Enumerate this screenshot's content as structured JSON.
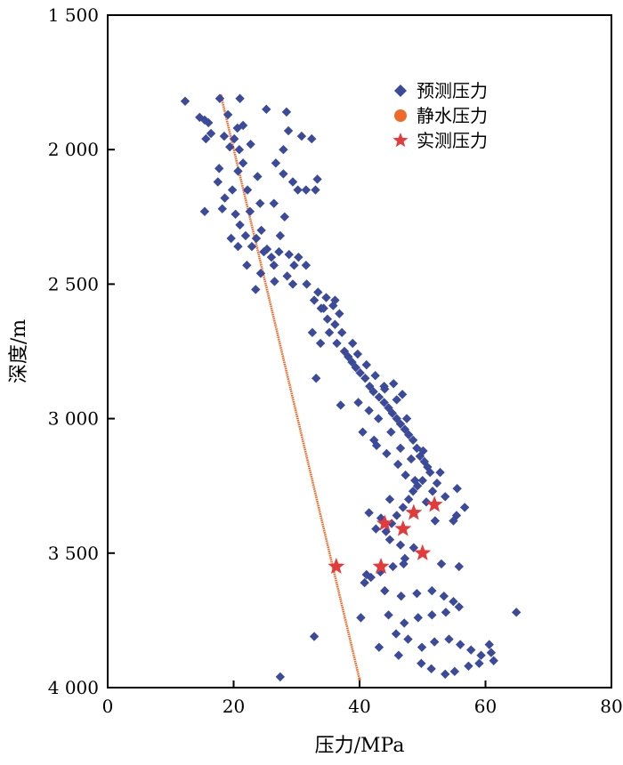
{
  "chart_data": {
    "type": "scatter",
    "title": "",
    "xlabel": "压力/MPa",
    "ylabel": "深度/m",
    "xlim": [
      0,
      80
    ],
    "ylim": [
      1500,
      4000
    ],
    "y_inverted": true,
    "x_ticks": [
      0,
      20,
      40,
      60,
      80
    ],
    "x_tick_labels": [
      "0",
      "20",
      "40",
      "60",
      "80"
    ],
    "y_ticks": [
      1500,
      2000,
      2500,
      3000,
      3500,
      4000
    ],
    "y_tick_labels": [
      "1 500",
      "2 000",
      "2 500",
      "3 000",
      "3 500",
      "4 000"
    ],
    "grid": false,
    "legend_position": "top-right",
    "colors": {
      "predicted": "#3b4a9a",
      "hydrostatic": "#ef6a2a",
      "measured": "#e53a3a"
    },
    "series": [
      {
        "name": "预测压力",
        "marker": "diamond",
        "points": [
          [
            12.3,
            1820
          ],
          [
            17.8,
            1810
          ],
          [
            21.0,
            1810
          ],
          [
            15.4,
            1890
          ],
          [
            16.0,
            1900
          ],
          [
            15.6,
            1960
          ],
          [
            19.1,
            1870
          ],
          [
            20.6,
            1920
          ],
          [
            21.5,
            1910
          ],
          [
            20.1,
            1960
          ],
          [
            20.9,
            2000
          ],
          [
            21.5,
            2050
          ],
          [
            19.4,
            1990
          ],
          [
            17.7,
            2070
          ],
          [
            20.7,
            2080
          ],
          [
            19.8,
            2150
          ],
          [
            22.2,
            2150
          ],
          [
            23.8,
            2100
          ],
          [
            25.2,
            1850
          ],
          [
            28.4,
            1860
          ],
          [
            28.7,
            1930
          ],
          [
            30.8,
            1950
          ],
          [
            32.4,
            1960
          ],
          [
            27.9,
            2000
          ],
          [
            26.7,
            2050
          ],
          [
            27.9,
            2090
          ],
          [
            24.2,
            2200
          ],
          [
            29.4,
            2120
          ],
          [
            33.3,
            2110
          ],
          [
            33.0,
            2150
          ],
          [
            31.5,
            2150
          ],
          [
            30.2,
            2150
          ],
          [
            18.6,
            2180
          ],
          [
            15.4,
            2230
          ],
          [
            22.6,
            2230
          ],
          [
            26.4,
            2200
          ],
          [
            28.1,
            2250
          ],
          [
            21.0,
            2280
          ],
          [
            24.4,
            2300
          ],
          [
            27.4,
            2320
          ],
          [
            19.6,
            2330
          ],
          [
            20.7,
            2360
          ],
          [
            22.9,
            2360
          ],
          [
            24.8,
            2380
          ],
          [
            27.2,
            2380
          ],
          [
            28.8,
            2390
          ],
          [
            30.3,
            2400
          ],
          [
            31.5,
            2430
          ],
          [
            22.1,
            2430
          ],
          [
            24.3,
            2460
          ],
          [
            26.4,
            2430
          ],
          [
            28.5,
            2470
          ],
          [
            29.4,
            2500
          ],
          [
            23.5,
            2520
          ],
          [
            31.6,
            2500
          ],
          [
            33.4,
            2530
          ],
          [
            34.7,
            2550
          ],
          [
            32.8,
            2560
          ],
          [
            35.8,
            2580
          ],
          [
            33.9,
            2590
          ],
          [
            36.8,
            2610
          ],
          [
            34.9,
            2630
          ],
          [
            36.1,
            2650
          ],
          [
            35.2,
            2680
          ],
          [
            37.2,
            2680
          ],
          [
            36.4,
            2720
          ],
          [
            37.6,
            2750
          ],
          [
            38.2,
            2770
          ],
          [
            38.8,
            2790
          ],
          [
            39.4,
            2810
          ],
          [
            40.1,
            2830
          ],
          [
            40.9,
            2850
          ],
          [
            41.6,
            2880
          ],
          [
            42.2,
            2900
          ],
          [
            43.1,
            2920
          ],
          [
            43.9,
            2940
          ],
          [
            44.6,
            2960
          ],
          [
            45.2,
            2980
          ],
          [
            45.9,
            3000
          ],
          [
            46.5,
            3020
          ],
          [
            47.2,
            3040
          ],
          [
            47.8,
            3060
          ],
          [
            48.5,
            3080
          ],
          [
            49.1,
            3110
          ],
          [
            49.6,
            3140
          ],
          [
            50.3,
            3160
          ],
          [
            50.8,
            3180
          ],
          [
            51.2,
            3200
          ],
          [
            50.0,
            3230
          ],
          [
            49.2,
            3250
          ],
          [
            48.5,
            3270
          ],
          [
            47.8,
            3300
          ],
          [
            46.9,
            3330
          ],
          [
            45.9,
            3360
          ],
          [
            45.1,
            3390
          ],
          [
            44.2,
            3420
          ],
          [
            43.4,
            3370
          ],
          [
            42.6,
            3410
          ],
          [
            41.5,
            3350
          ],
          [
            44.8,
            3450
          ],
          [
            46.5,
            3470
          ],
          [
            48.6,
            3480
          ],
          [
            47.2,
            3520
          ],
          [
            45.3,
            3550
          ],
          [
            43.3,
            3570
          ],
          [
            41.8,
            3590
          ],
          [
            40.8,
            3610
          ],
          [
            44.0,
            3640
          ],
          [
            46.6,
            3660
          ],
          [
            49.1,
            3650
          ],
          [
            51.5,
            3640
          ],
          [
            53.4,
            3660
          ],
          [
            54.9,
            3680
          ],
          [
            55.8,
            3700
          ],
          [
            53.7,
            3720
          ],
          [
            51.5,
            3730
          ],
          [
            49.3,
            3740
          ],
          [
            47.1,
            3760
          ],
          [
            44.6,
            3730
          ],
          [
            45.8,
            3800
          ],
          [
            47.7,
            3820
          ],
          [
            49.9,
            3850
          ],
          [
            51.9,
            3830
          ],
          [
            54.2,
            3820
          ],
          [
            56.0,
            3840
          ],
          [
            57.7,
            3860
          ],
          [
            59.3,
            3880
          ],
          [
            60.9,
            3870
          ],
          [
            61.3,
            3900
          ],
          [
            59.0,
            3910
          ],
          [
            57.3,
            3920
          ],
          [
            55.1,
            3940
          ],
          [
            53.6,
            3950
          ],
          [
            51.4,
            3930
          ],
          [
            49.8,
            3910
          ],
          [
            46.2,
            3880
          ],
          [
            43.1,
            3850
          ],
          [
            40.2,
            3740
          ],
          [
            32.8,
            3810
          ],
          [
            27.4,
            3960
          ],
          [
            64.9,
            3720
          ],
          [
            60.6,
            3840
          ],
          [
            55.8,
            3550
          ],
          [
            53.0,
            3540
          ],
          [
            47.0,
            3540
          ],
          [
            41.1,
            3580
          ],
          [
            33.1,
            2850
          ],
          [
            37.0,
            2950
          ],
          [
            39.8,
            2940
          ],
          [
            40.5,
            3050
          ],
          [
            42.3,
            3080
          ],
          [
            44.3,
            3130
          ],
          [
            46.1,
            3170
          ],
          [
            47.3,
            3210
          ],
          [
            48.8,
            3230
          ],
          [
            52.3,
            3240
          ],
          [
            53.6,
            3290
          ],
          [
            50.6,
            3310
          ],
          [
            52.8,
            3200
          ],
          [
            55.5,
            3260
          ],
          [
            56.7,
            3330
          ],
          [
            55.4,
            3360
          ],
          [
            52.0,
            3380
          ],
          [
            44.8,
            3300
          ],
          [
            43.0,
            3000
          ],
          [
            41.5,
            2970
          ],
          [
            45.9,
            2930
          ],
          [
            47.5,
            3000
          ],
          [
            45.0,
            3050
          ],
          [
            42.7,
            3100
          ],
          [
            46.5,
            3110
          ],
          [
            48.2,
            3150
          ],
          [
            50.1,
            3120
          ],
          [
            51.6,
            3270
          ],
          [
            54.9,
            3380
          ],
          [
            33.8,
            2720
          ],
          [
            32.5,
            2680
          ],
          [
            34.3,
            2590
          ],
          [
            38.9,
            2720
          ],
          [
            39.7,
            2760
          ],
          [
            41.1,
            2800
          ],
          [
            42.5,
            2840
          ],
          [
            43.9,
            2880
          ],
          [
            45.4,
            2870
          ],
          [
            46.8,
            2910
          ],
          [
            44.0,
            2890
          ],
          [
            36.1,
            2560
          ],
          [
            29.6,
            2430
          ],
          [
            26.0,
            2400
          ],
          [
            25.3,
            2370
          ],
          [
            23.6,
            2330
          ],
          [
            21.9,
            2320
          ],
          [
            18.2,
            2220
          ],
          [
            17.5,
            2120
          ],
          [
            16.4,
            1940
          ],
          [
            14.6,
            1880
          ],
          [
            18.5,
            1950
          ],
          [
            22.7,
            1980
          ],
          [
            20.3,
            2240
          ],
          [
            26.5,
            2490
          ]
        ]
      },
      {
        "name": "静水压力",
        "marker": "dot",
        "points": [
          [
            18.0,
            1800
          ],
          [
            40.0,
            3970
          ]
        ]
      },
      {
        "name": "实测压力",
        "marker": "star",
        "points": [
          [
            36.3,
            3550
          ],
          [
            43.4,
            3550
          ],
          [
            44.0,
            3390
          ],
          [
            46.9,
            3410
          ],
          [
            48.6,
            3350
          ],
          [
            50.0,
            3500
          ],
          [
            51.9,
            3320
          ]
        ]
      }
    ]
  }
}
